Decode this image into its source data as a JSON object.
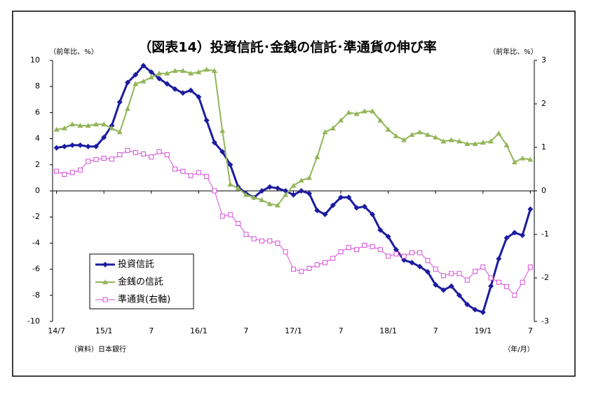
{
  "chart_data": {
    "type": "line",
    "title": "（図表14）投資信託･金銭の信託･準通貨の伸び率",
    "y_label": "（前年比、%）",
    "y2_label": "（前年比、%）",
    "source": "（資料）日本銀行",
    "x_unit": "（年/月）",
    "categories": [
      "14/7",
      null,
      null,
      null,
      null,
      null,
      "15/1",
      null,
      null,
      null,
      null,
      null,
      "7",
      null,
      null,
      null,
      null,
      null,
      "16/1",
      null,
      null,
      null,
      null,
      null,
      "7",
      null,
      null,
      null,
      null,
      null,
      "17/1",
      null,
      null,
      null,
      null,
      null,
      "7",
      null,
      null,
      null,
      null,
      null,
      "18/1",
      null,
      null,
      null,
      null,
      null,
      "7",
      null,
      null,
      null,
      null,
      null,
      "19/1",
      null,
      null,
      null,
      null,
      null,
      "7"
    ],
    "ylim": [
      -10,
      10
    ],
    "yticks": [
      -10,
      -8,
      -6,
      -4,
      -2,
      0,
      2,
      4,
      6,
      8,
      10
    ],
    "y2lim": [
      -3,
      3
    ],
    "y2ticks": [
      -3,
      -2,
      -1,
      0,
      1,
      2,
      3
    ],
    "legend": "lower left",
    "series": [
      {
        "name": "投資信託",
        "color": "#1c1ca0",
        "marker": "diamond",
        "values": [
          3.3,
          3.4,
          3.5,
          3.5,
          3.4,
          3.4,
          4.1,
          5.0,
          6.8,
          8.3,
          8.9,
          9.6,
          9.1,
          8.6,
          8.2,
          7.8,
          7.5,
          7.7,
          7.2,
          5.4,
          3.7,
          3.0,
          2.0,
          0.3,
          -0.2,
          -0.5,
          0.0,
          0.3,
          0.2,
          0.0,
          -0.3,
          0.0,
          -0.2,
          -1.5,
          -1.8,
          -1.1,
          -0.5,
          -0.5,
          -1.3,
          -1.2,
          -1.8,
          -3.0,
          -3.5,
          -4.5,
          -5.3,
          -5.5,
          -5.8,
          -6.2,
          -7.2,
          -7.6,
          -7.3,
          -8.0,
          -8.7,
          -9.1,
          -9.3,
          -7.3,
          -5.2,
          -3.6,
          -3.2,
          -3.4,
          -1.4
        ]
      },
      {
        "name": "金銭の信託",
        "color": "#93b558",
        "marker": "triangle",
        "values": [
          4.7,
          4.8,
          5.1,
          5.0,
          5.0,
          5.1,
          5.1,
          4.8,
          4.5,
          6.3,
          8.2,
          8.4,
          8.7,
          9.0,
          9.0,
          9.2,
          9.2,
          9.0,
          9.1,
          9.3,
          9.2,
          4.6,
          0.5,
          0.2,
          -0.3,
          -0.5,
          -0.7,
          -1.0,
          -1.1,
          -0.3,
          0.4,
          0.8,
          1.0,
          2.6,
          4.5,
          4.8,
          5.4,
          6.0,
          5.9,
          6.1,
          6.1,
          5.4,
          4.7,
          4.2,
          3.9,
          4.3,
          4.5,
          4.3,
          4.1,
          3.8,
          3.9,
          3.8,
          3.6,
          3.6,
          3.7,
          3.8,
          4.4,
          3.5,
          2.2,
          2.5,
          2.4
        ]
      },
      {
        "name": "準通貨(右軸)",
        "color": "#d64fd6",
        "marker": "square",
        "axis": "y2",
        "values": [
          0.45,
          0.38,
          0.42,
          0.48,
          0.68,
          0.72,
          0.75,
          0.73,
          0.83,
          0.93,
          0.88,
          0.85,
          0.78,
          0.9,
          0.83,
          0.5,
          0.45,
          0.35,
          0.42,
          0.33,
          0.0,
          -0.58,
          -0.55,
          -0.75,
          -1.0,
          -1.1,
          -1.15,
          -1.15,
          -1.2,
          -1.4,
          -1.8,
          -1.85,
          -1.78,
          -1.7,
          -1.65,
          -1.55,
          -1.4,
          -1.3,
          -1.35,
          -1.25,
          -1.28,
          -1.35,
          -1.5,
          -1.45,
          -1.5,
          -1.42,
          -1.42,
          -1.6,
          -1.8,
          -1.95,
          -1.9,
          -1.9,
          -2.05,
          -1.85,
          -1.75,
          -2.0,
          -2.1,
          -2.2,
          -2.4,
          -2.1,
          -1.75
        ]
      }
    ]
  }
}
